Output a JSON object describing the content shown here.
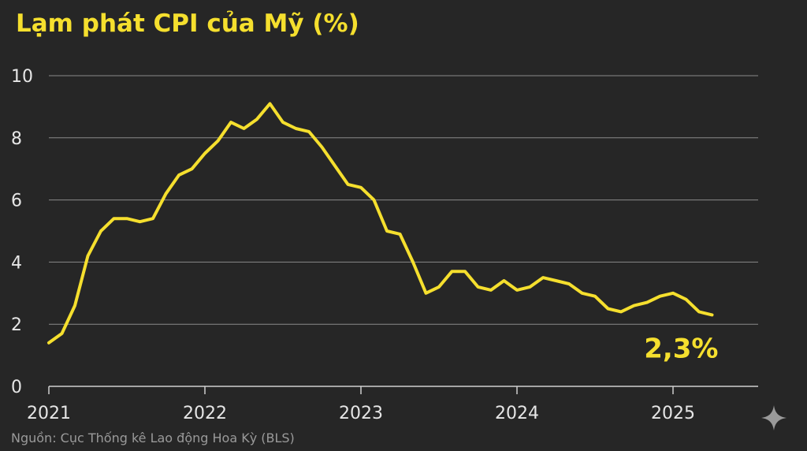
{
  "header": {
    "title": "Lạm phát CPI của Mỹ (%)"
  },
  "footer": {
    "source": "Nguồn: Cục Thống kê Lao động Hoa Kỳ (BLS)"
  },
  "colors": {
    "background": "#262626",
    "line": "#f5df2e",
    "grid": "#8a8a8a",
    "text": "#e6e6e6"
  },
  "icons": {
    "corner": "sparkle-icon"
  },
  "chart_data": {
    "type": "line",
    "title": "Lạm phát CPI của Mỹ (%)",
    "xlabel": "",
    "ylabel": "",
    "ylim": [
      0,
      10
    ],
    "xlim": [
      2021.0,
      2025.5
    ],
    "grid": true,
    "y_ticks": [
      "0",
      "2",
      "4",
      "6",
      "8",
      "10"
    ],
    "x_ticks": [
      {
        "value": 2021,
        "label": "2021"
      },
      {
        "value": 2022,
        "label": "2022"
      },
      {
        "value": 2023,
        "label": "2023"
      },
      {
        "value": 2024,
        "label": "2024"
      },
      {
        "value": 2025,
        "label": "2025"
      }
    ],
    "end_label": "2,3%",
    "series": [
      {
        "x": [
          "2021-01",
          "2021-02",
          "2021-03",
          "2021-04",
          "2021-05",
          "2021-06",
          "2021-07",
          "2021-08",
          "2021-09",
          "2021-10",
          "2021-11",
          "2021-12",
          "2022-01",
          "2022-02",
          "2022-03",
          "2022-04",
          "2022-05",
          "2022-06",
          "2022-07",
          "2022-08",
          "2022-09",
          "2022-10",
          "2022-11",
          "2022-12",
          "2023-01",
          "2023-02",
          "2023-03",
          "2023-04",
          "2023-05",
          "2023-06",
          "2023-07",
          "2023-08",
          "2023-09",
          "2023-10",
          "2023-11",
          "2023-12",
          "2024-01",
          "2024-02",
          "2024-03",
          "2024-04",
          "2024-05",
          "2024-06",
          "2024-07",
          "2024-08",
          "2024-09",
          "2024-10",
          "2024-11",
          "2024-12",
          "2025-01",
          "2025-02",
          "2025-03",
          "2025-04"
        ],
        "values": [
          1.4,
          1.7,
          2.6,
          4.2,
          5.0,
          5.4,
          5.4,
          5.3,
          5.4,
          6.2,
          6.8,
          7.0,
          7.5,
          7.9,
          8.5,
          8.3,
          8.6,
          9.1,
          8.5,
          8.3,
          8.2,
          7.7,
          7.1,
          6.5,
          6.4,
          6.0,
          5.0,
          4.9,
          4.0,
          3.0,
          3.2,
          3.7,
          3.7,
          3.2,
          3.1,
          3.4,
          3.1,
          3.2,
          3.5,
          3.4,
          3.3,
          3.0,
          2.9,
          2.5,
          2.4,
          2.6,
          2.7,
          2.9,
          3.0,
          2.8,
          2.4,
          2.3
        ]
      }
    ]
  }
}
